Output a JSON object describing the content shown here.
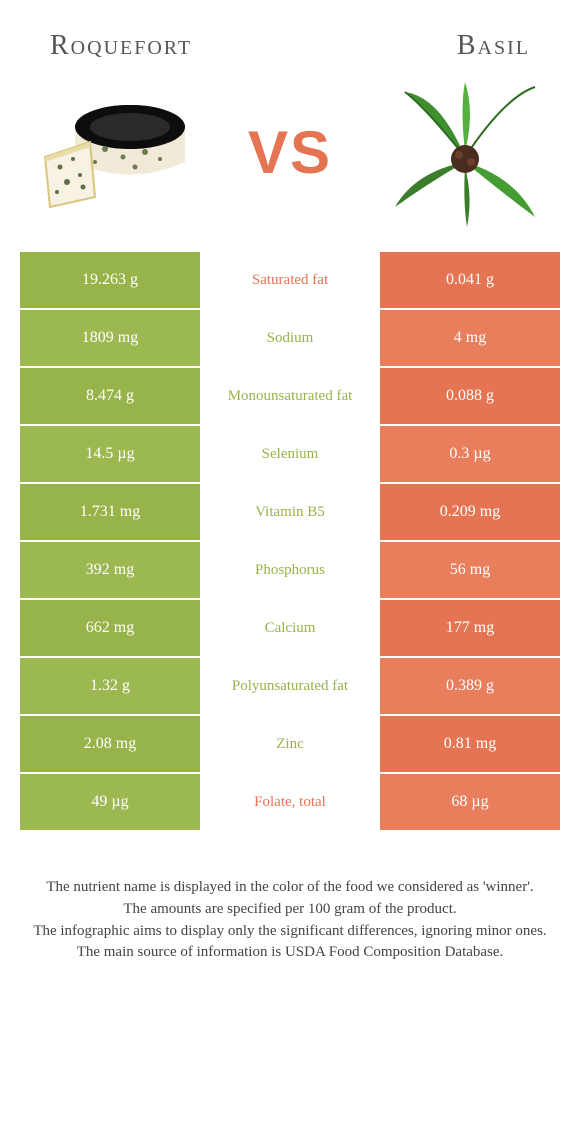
{
  "colors": {
    "green": "#97b44a",
    "green_alt": "#9cb851",
    "orange": "#e57452",
    "orange_alt": "#e87e5b",
    "white": "#ffffff",
    "text": "#555555"
  },
  "food_left": {
    "title": "Roquefort",
    "icon": "roquefort-icon"
  },
  "food_right": {
    "title": "Basil",
    "icon": "basil-icon"
  },
  "vs": "VS",
  "rows": [
    {
      "left": "19.263 g",
      "nutrient": "Saturated fat",
      "right": "0.041 g",
      "winner": "left"
    },
    {
      "left": "1809 mg",
      "nutrient": "Sodium",
      "right": "4 mg",
      "winner": "left"
    },
    {
      "left": "8.474 g",
      "nutrient": "Monounsaturated fat",
      "right": "0.088 g",
      "winner": "left"
    },
    {
      "left": "14.5 µg",
      "nutrient": "Selenium",
      "right": "0.3 µg",
      "winner": "left"
    },
    {
      "left": "1.731 mg",
      "nutrient": "Vitamin B5",
      "right": "0.209 mg",
      "winner": "left"
    },
    {
      "left": "392 mg",
      "nutrient": "Phosphorus",
      "right": "56 mg",
      "winner": "left"
    },
    {
      "left": "662 mg",
      "nutrient": "Calcium",
      "right": "177 mg",
      "winner": "left"
    },
    {
      "left": "1.32 g",
      "nutrient": "Polyunsaturated fat",
      "right": "0.389 g",
      "winner": "left"
    },
    {
      "left": "2.08 mg",
      "nutrient": "Zinc",
      "right": "0.81 mg",
      "winner": "left"
    },
    {
      "left": "49 µg",
      "nutrient": "Folate, total",
      "right": "68 µg",
      "winner": "right"
    }
  ],
  "footer": [
    "The nutrient name is displayed in the color of the food we considered as 'winner'.",
    "The amounts are specified per 100 gram of the product.",
    "The infographic aims to display only the significant differences, ignoring minor ones.",
    "The main source of information is USDA Food Composition Database."
  ]
}
